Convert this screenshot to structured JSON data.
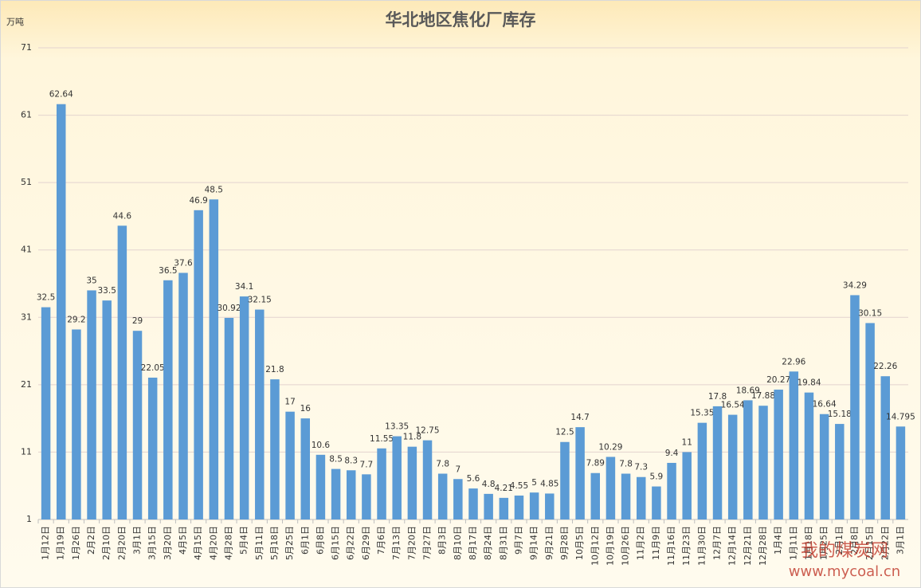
{
  "chart_data": {
    "type": "bar",
    "title": "华北地区焦化厂库存",
    "y_unit": "万吨",
    "categories": [
      "1月12日",
      "1月19日",
      "1月26日",
      "2月2日",
      "2月10日",
      "2月20日",
      "3月1日",
      "3月15日",
      "3月20日",
      "4月5日",
      "4月15日",
      "4月20日",
      "4月28日",
      "5月4日",
      "5月11日",
      "5月18日",
      "5月25日",
      "6月1日",
      "6月8日",
      "6月15日",
      "6月22日",
      "6月29日",
      "7月6日",
      "7月13日",
      "7月20日",
      "7月27日",
      "8月3日",
      "8月10日",
      "8月17日",
      "8月24日",
      "8月31日",
      "9月7日",
      "9月14日",
      "9月21日",
      "9月28日",
      "10月5日",
      "10月12日",
      "10月19日",
      "10月26日",
      "11月2日",
      "11月9日",
      "11月16日",
      "11月23日",
      "11月30日",
      "12月7日",
      "12月14日",
      "12月21日",
      "12月28日",
      "1月4日",
      "1月11日",
      "1月18日",
      "1月25日",
      "2月1日",
      "2月8日",
      "2月15日",
      "2月22日",
      "3月1日"
    ],
    "values": [
      32.5,
      62.64,
      29.2,
      35,
      33.5,
      44.6,
      29,
      22.05,
      36.5,
      37.6,
      46.9,
      48.5,
      30.92,
      34.1,
      32.15,
      21.8,
      17,
      16,
      10.6,
      8.5,
      8.3,
      7.7,
      11.55,
      13.35,
      11.8,
      12.75,
      7.8,
      7,
      5.6,
      4.8,
      4.21,
      4.55,
      5,
      4.85,
      12.5,
      14.7,
      7.89,
      10.29,
      7.8,
      7.3,
      5.9,
      9.4,
      11,
      15.35,
      17.8,
      16.54,
      18.69,
      17.88,
      20.27,
      22.96,
      19.84,
      16.64,
      15.18,
      34.29,
      30.15,
      22.26,
      14.795
    ],
    "color": "#5b9bd5",
    "ylim": [
      1,
      71
    ],
    "yticks": [
      1,
      11,
      21,
      31,
      41,
      51,
      61,
      71
    ],
    "grid": true
  },
  "watermark": {
    "site": "我的煤炭网",
    "url": "www.mycoal.cn"
  }
}
